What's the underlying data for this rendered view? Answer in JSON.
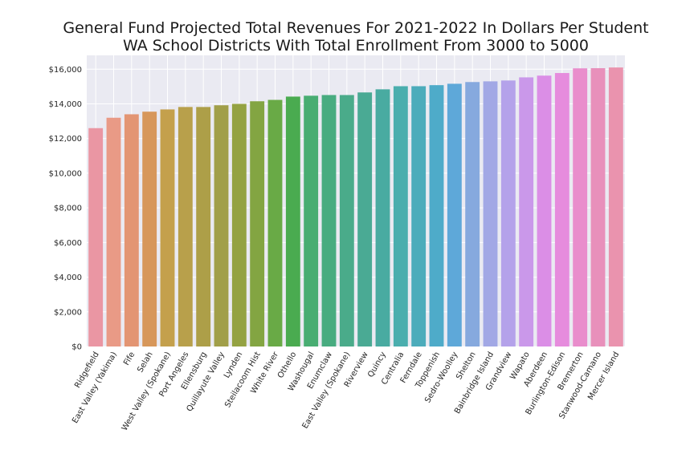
{
  "chart_data": {
    "type": "bar",
    "title": [
      "General Fund Projected Total Revenues For 2021-2022 In Dollars Per Student",
      "WA School Districts With Total Enrollment From 3000 to 5000"
    ],
    "xlabel": "",
    "ylabel": "",
    "ylim": [
      0,
      16800
    ],
    "yticks": [
      0,
      2000,
      4000,
      6000,
      8000,
      10000,
      12000,
      14000,
      16000
    ],
    "ytick_labels": [
      "$0",
      "$2,000",
      "$4,000",
      "$6,000",
      "$8,000",
      "$10,000",
      "$12,000",
      "$14,000",
      "$16,000"
    ],
    "grid": true,
    "categories": [
      "Ridgefield",
      "East Valley (Yakima)",
      "Fife",
      "Selah",
      "West Valley (Spokane)",
      "Port Angeles",
      "Ellensburg",
      "Quillayute Valley",
      "Lynden",
      "Steilacoom Hist",
      "White River",
      "Othello",
      "Washougal",
      "Enumclaw",
      "East Valley (Spokane)",
      "Riverview",
      "Quincy",
      "Centralia",
      "Ferndale",
      "Toppenish",
      "Sedro-Woolley",
      "Shelton",
      "Bainbridge Island",
      "Grandview",
      "Wapato",
      "Aberdeen",
      "Burlington-Edison",
      "Bremerton",
      "Stanwood-Camano",
      "Mercer Island"
    ],
    "values": [
      12600,
      13200,
      13400,
      13550,
      13680,
      13820,
      13820,
      13920,
      14000,
      14150,
      14230,
      14420,
      14470,
      14510,
      14510,
      14660,
      14840,
      15020,
      15020,
      15080,
      15160,
      15260,
      15300,
      15350,
      15530,
      15630,
      15780,
      16050,
      16060,
      16100
    ],
    "colors": [
      "#ea96a3",
      "#e99a86",
      "#e39573",
      "#d7975a",
      "#c4a04c",
      "#b8a04b",
      "#ad9f48",
      "#a19f49",
      "#94a242",
      "#83a542",
      "#69aa46",
      "#4aab50",
      "#48ad72",
      "#48ac80",
      "#4aab8a",
      "#4aaa94",
      "#49aba1",
      "#4aaeae",
      "#4cacbb",
      "#4eabc9",
      "#5ea8d9",
      "#86a9de",
      "#a2a8e5",
      "#b4a2ea",
      "#ca98ea",
      "#db8ee6",
      "#e68cdd",
      "#e98dcc",
      "#e890bb",
      "#ea93ae"
    ]
  }
}
